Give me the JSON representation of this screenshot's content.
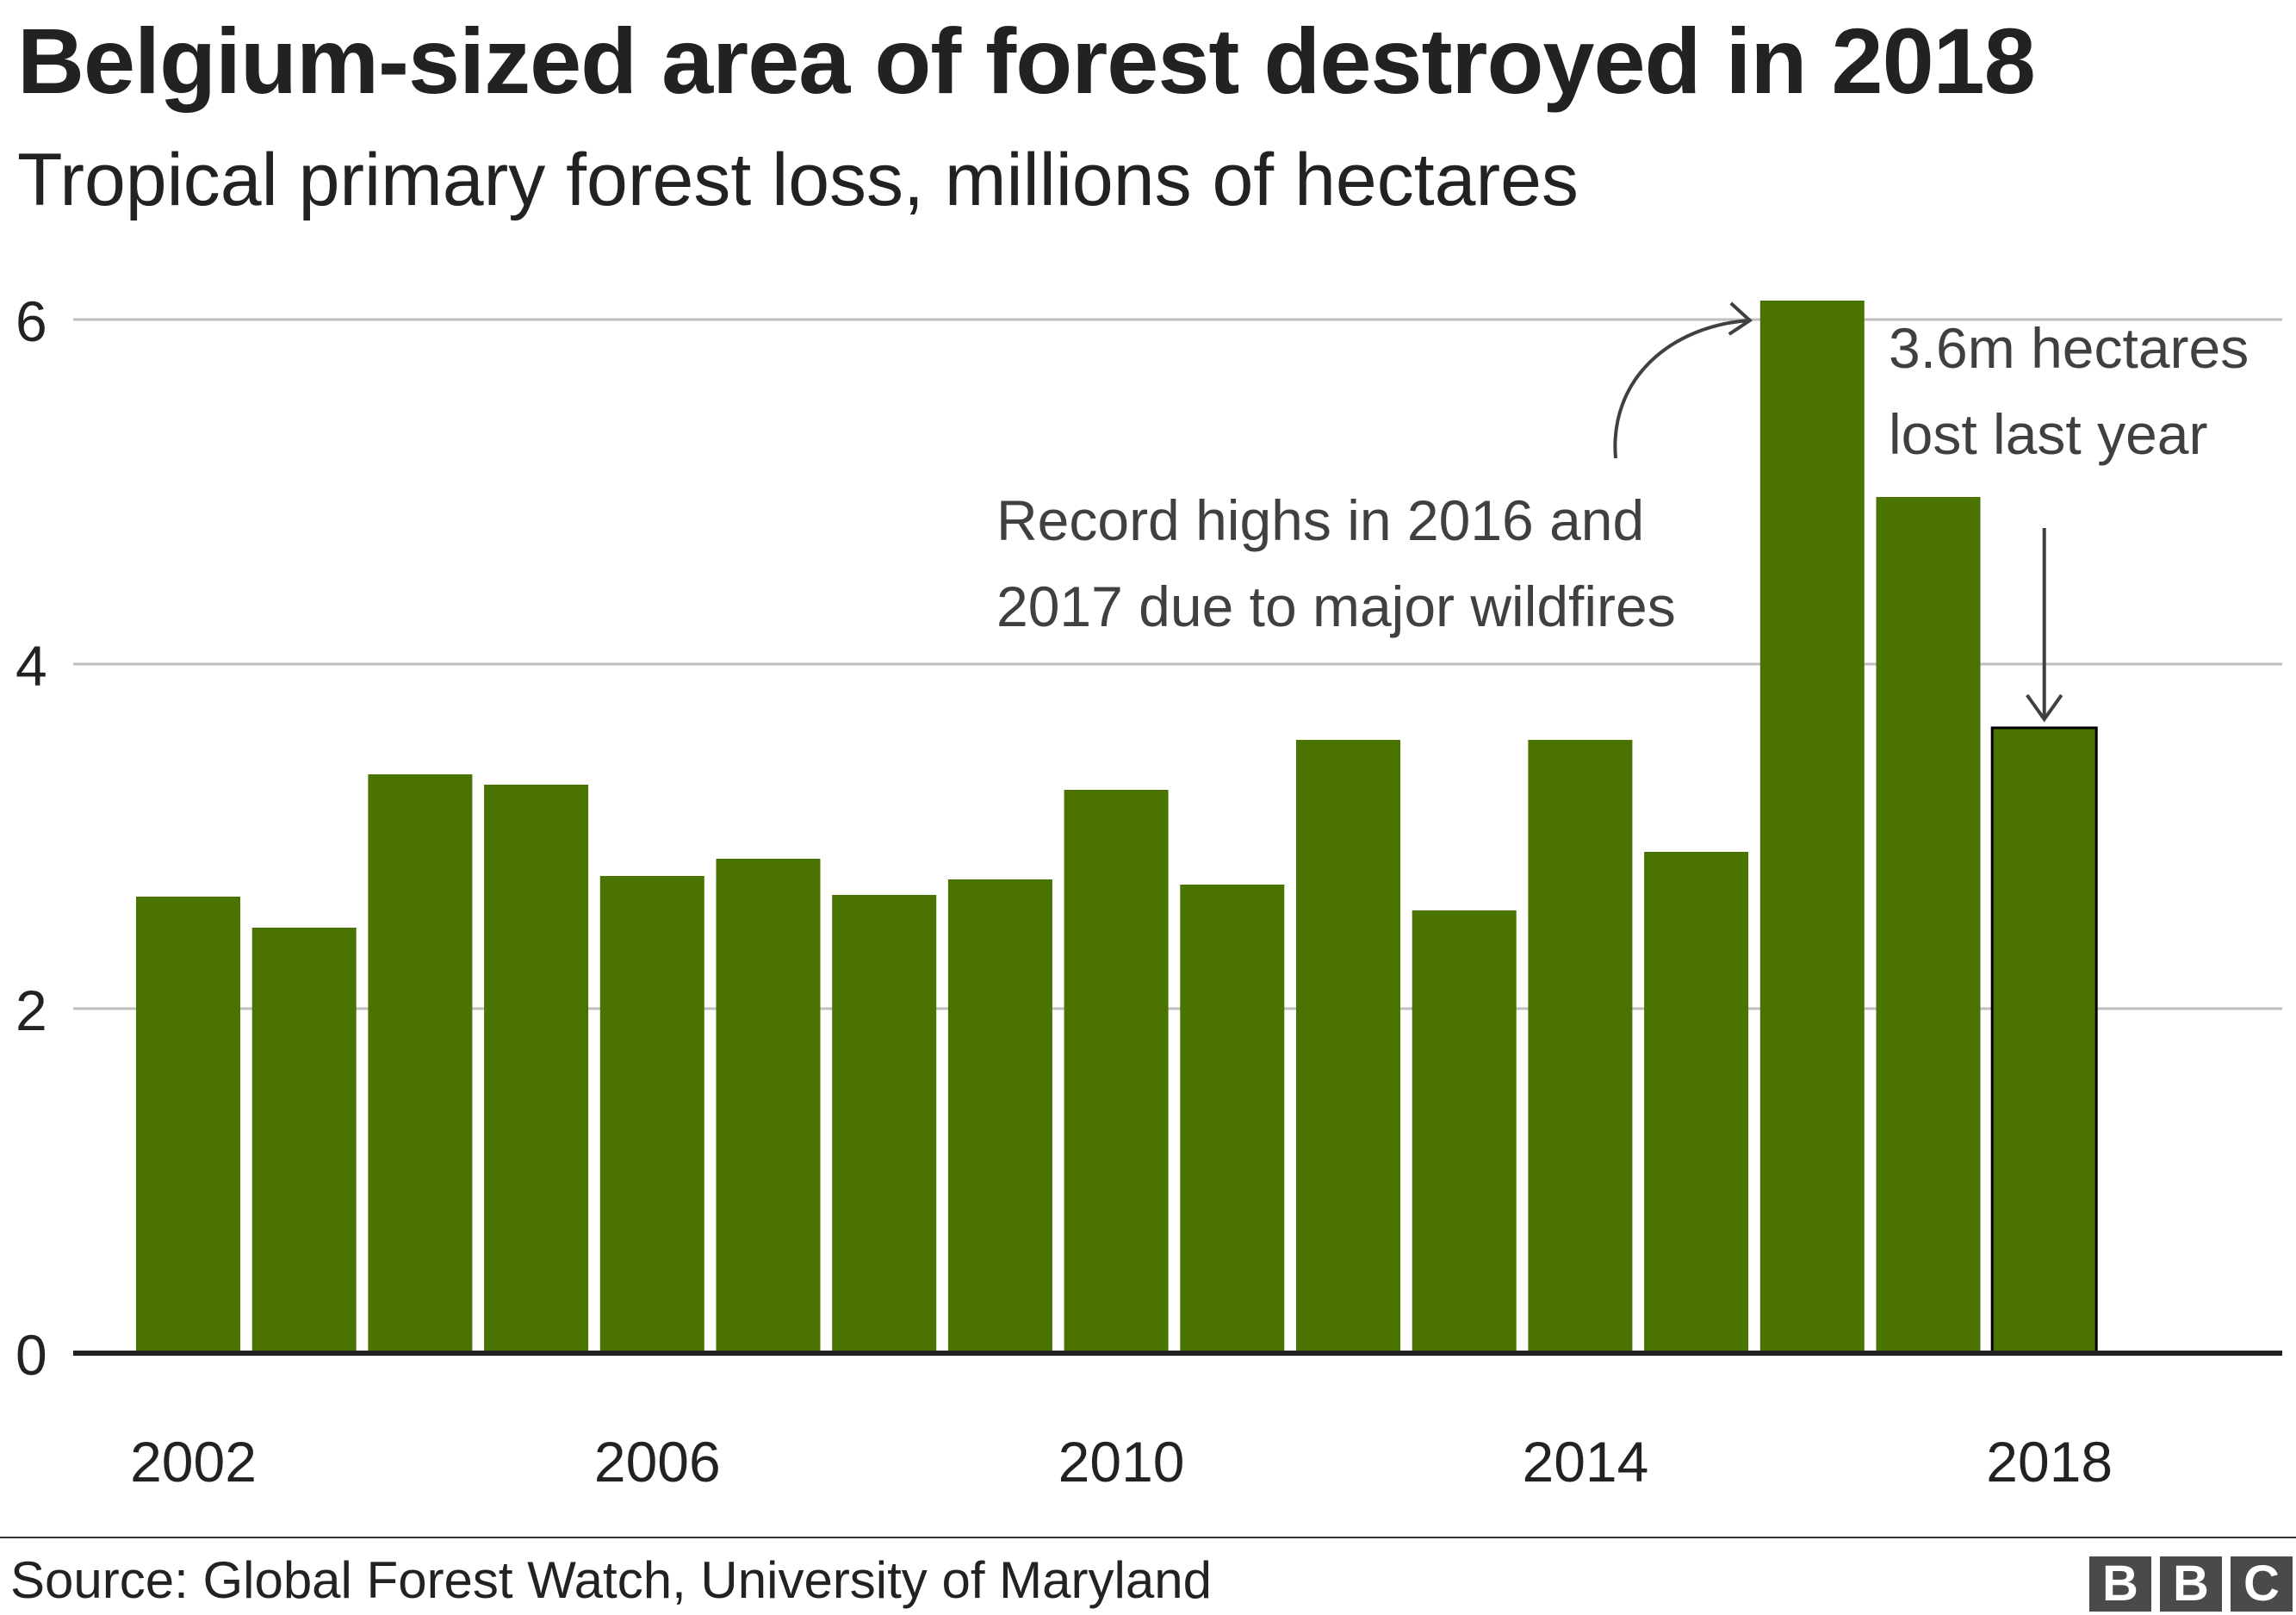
{
  "title": "Belgium-sized area of forest destroyed in 2018",
  "subtitle": "Tropical primary forest loss, millions of hectares",
  "source": "Source: Global Forest Watch, University of Maryland",
  "logo": {
    "letters": [
      "B",
      "B",
      "C"
    ],
    "color": "#4a4a4a"
  },
  "colors": {
    "bar": "#4a7302",
    "grid": "#bfbfbf",
    "axis": "#222222",
    "annotation": "#404040"
  },
  "chart_data": {
    "type": "bar",
    "categories": [
      "2002",
      "2003",
      "2004",
      "2005",
      "2006",
      "2007",
      "2008",
      "2009",
      "2010",
      "2011",
      "2012",
      "2013",
      "2014",
      "2015",
      "2016",
      "2017",
      "2018"
    ],
    "values": [
      2.65,
      2.47,
      3.36,
      3.3,
      2.77,
      2.87,
      2.66,
      2.75,
      3.27,
      2.72,
      3.56,
      2.57,
      3.56,
      2.91,
      6.11,
      4.97,
      3.63
    ],
    "highlight_index": 16,
    "ylim": [
      0,
      6.3
    ],
    "yticks": [
      0,
      2,
      4,
      6
    ],
    "xtick_labels": [
      "2002",
      "2006",
      "2010",
      "2014",
      "2018"
    ],
    "xlabel": "",
    "ylabel": "",
    "grid": true,
    "annotations": [
      {
        "lines": [
          "Record highs in 2016 and",
          "2017 due to major wildfires"
        ],
        "target": "2016"
      },
      {
        "lines": [
          "3.6m hectares",
          "lost last year"
        ],
        "target": "2018"
      }
    ]
  }
}
